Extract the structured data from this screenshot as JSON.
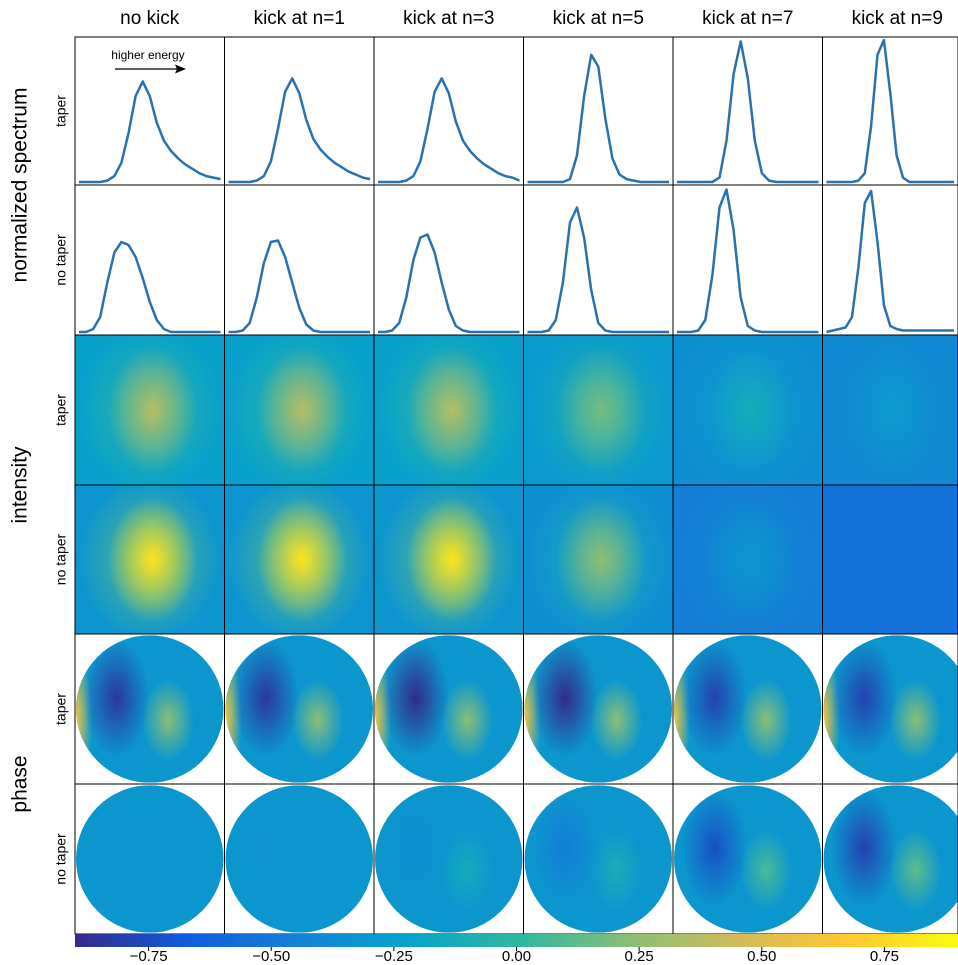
{
  "chart_data": {
    "type": "panel-grid",
    "columns": [
      "no kick",
      "kick at n=1",
      "kick at n=3",
      "kick at n=5",
      "kick at n=7",
      "kick at n=9"
    ],
    "row_groups": [
      {
        "label": "normalized spectrum",
        "rows": [
          "taper",
          "no taper"
        ]
      },
      {
        "label": "intensity",
        "rows": [
          "taper",
          "no taper"
        ]
      },
      {
        "label": "phase",
        "rows": [
          "taper",
          "no taper"
        ]
      }
    ],
    "annotation": "higher energy",
    "line_color": "#2a71b0",
    "ylim": [
      0,
      1
    ],
    "spectra": [
      [
        [
          0.02,
          0.02,
          0.02,
          0.02,
          0.03,
          0.06,
          0.15,
          0.35,
          0.6,
          0.7,
          0.6,
          0.42,
          0.3,
          0.23,
          0.18,
          0.14,
          0.11,
          0.08,
          0.06,
          0.05,
          0.04
        ],
        [
          0.02,
          0.02,
          0.02,
          0.02,
          0.03,
          0.06,
          0.16,
          0.38,
          0.63,
          0.72,
          0.62,
          0.44,
          0.31,
          0.24,
          0.19,
          0.15,
          0.12,
          0.09,
          0.07,
          0.05,
          0.04
        ],
        [
          0.02,
          0.02,
          0.02,
          0.02,
          0.03,
          0.06,
          0.16,
          0.38,
          0.63,
          0.72,
          0.62,
          0.43,
          0.3,
          0.23,
          0.18,
          0.14,
          0.11,
          0.08,
          0.06,
          0.05,
          0.03
        ],
        [
          0.02,
          0.02,
          0.02,
          0.02,
          0.02,
          0.02,
          0.04,
          0.2,
          0.6,
          0.88,
          0.8,
          0.45,
          0.18,
          0.07,
          0.04,
          0.03,
          0.02,
          0.02,
          0.02,
          0.02,
          0.02
        ],
        [
          0.02,
          0.02,
          0.02,
          0.02,
          0.02,
          0.02,
          0.05,
          0.3,
          0.75,
          0.97,
          0.72,
          0.3,
          0.08,
          0.03,
          0.02,
          0.02,
          0.02,
          0.02,
          0.02,
          0.02,
          0.02
        ],
        [
          0.02,
          0.02,
          0.02,
          0.02,
          0.02,
          0.03,
          0.08,
          0.4,
          0.88,
          0.98,
          0.62,
          0.2,
          0.05,
          0.02,
          0.02,
          0.02,
          0.02,
          0.02,
          0.02,
          0.02,
          0.02
        ]
      ],
      [
        [
          0.02,
          0.02,
          0.04,
          0.12,
          0.35,
          0.55,
          0.62,
          0.6,
          0.52,
          0.38,
          0.22,
          0.1,
          0.04,
          0.02,
          0.02,
          0.02,
          0.02,
          0.02,
          0.02,
          0.02,
          0.02
        ],
        [
          0.02,
          0.02,
          0.03,
          0.08,
          0.25,
          0.48,
          0.62,
          0.63,
          0.52,
          0.35,
          0.18,
          0.07,
          0.03,
          0.02,
          0.02,
          0.02,
          0.02,
          0.02,
          0.02,
          0.02,
          0.02
        ],
        [
          0.02,
          0.02,
          0.03,
          0.08,
          0.25,
          0.5,
          0.65,
          0.67,
          0.55,
          0.35,
          0.17,
          0.06,
          0.03,
          0.02,
          0.02,
          0.02,
          0.02,
          0.02,
          0.02,
          0.02,
          0.02
        ],
        [
          0.02,
          0.02,
          0.02,
          0.03,
          0.1,
          0.35,
          0.75,
          0.85,
          0.65,
          0.3,
          0.08,
          0.03,
          0.02,
          0.02,
          0.02,
          0.02,
          0.02,
          0.02,
          0.02,
          0.02,
          0.02
        ],
        [
          0.02,
          0.02,
          0.02,
          0.03,
          0.1,
          0.4,
          0.85,
          0.97,
          0.7,
          0.25,
          0.06,
          0.03,
          0.02,
          0.02,
          0.02,
          0.02,
          0.02,
          0.02,
          0.02,
          0.02,
          0.02
        ],
        [
          0.02,
          0.03,
          0.04,
          0.05,
          0.12,
          0.45,
          0.88,
          0.96,
          0.62,
          0.2,
          0.06,
          0.04,
          0.03,
          0.03,
          0.03,
          0.03,
          0.03,
          0.03,
          0.03,
          0.03,
          0.03
        ]
      ]
    ],
    "clim": [
      -0.9,
      0.9
    ],
    "colorbar_ticks": [
      {
        "value": -0.75,
        "label": "−0.75"
      },
      {
        "value": -0.5,
        "label": "−0.50"
      },
      {
        "value": -0.25,
        "label": "−0.25"
      },
      {
        "value": 0,
        "label": "0.00"
      },
      0.25,
      {
        "value": 0.5,
        "label": "0.50"
      },
      0.75
    ]
  }
}
